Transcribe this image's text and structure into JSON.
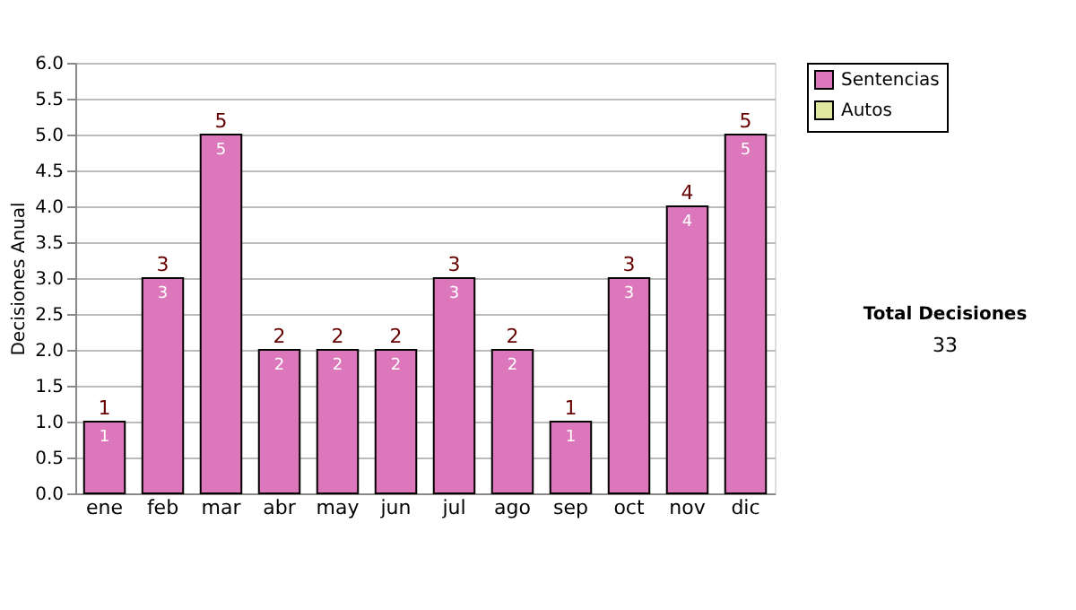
{
  "chart_data": {
    "type": "bar",
    "stacked": true,
    "ylabel": "Decisiones Anual",
    "categories": [
      "ene",
      "feb",
      "mar",
      "abr",
      "may",
      "jun",
      "jul",
      "ago",
      "sep",
      "oct",
      "nov",
      "dic"
    ],
    "series": [
      {
        "name": "Sentencias",
        "color": "#dd77bb",
        "values": [
          1,
          3,
          5,
          2,
          2,
          2,
          3,
          2,
          1,
          3,
          4,
          5
        ],
        "value_labels": [
          "1",
          "3",
          "5",
          "2",
          "2",
          "2",
          "3",
          "2",
          "1",
          "3",
          "4",
          "5"
        ]
      },
      {
        "name": "Autos",
        "color": "#e0e8a0",
        "values": [
          null,
          null,
          null,
          null,
          null,
          null,
          null,
          null,
          null,
          null,
          null,
          null
        ]
      }
    ],
    "ylim": [
      0,
      6
    ],
    "yticks": [
      {
        "value": 0,
        "label": "0.0"
      },
      {
        "value": 0.5,
        "label": "0.5"
      },
      {
        "value": 1,
        "label": "1.0"
      },
      {
        "value": 1.5,
        "label": "1.5"
      },
      {
        "value": 2,
        "label": "2.0"
      },
      {
        "value": 2.5,
        "label": "2.5"
      },
      {
        "value": 3,
        "label": "3.0"
      },
      {
        "value": 3.5,
        "label": "3.5"
      },
      {
        "value": 4,
        "label": "4.0"
      },
      {
        "value": 4.5,
        "label": "4.5"
      },
      {
        "value": 5,
        "label": "5.0"
      },
      {
        "value": 5.5,
        "label": "5.5"
      },
      {
        "value": 6,
        "label": "6.0"
      }
    ],
    "grid": "y",
    "legend": "right",
    "totals": [
      "1",
      "3",
      "5",
      "2",
      "2",
      "2",
      "3",
      "2",
      "1",
      "3",
      "4",
      "5"
    ],
    "annotations": [
      "Total Decisiones",
      "33"
    ]
  }
}
